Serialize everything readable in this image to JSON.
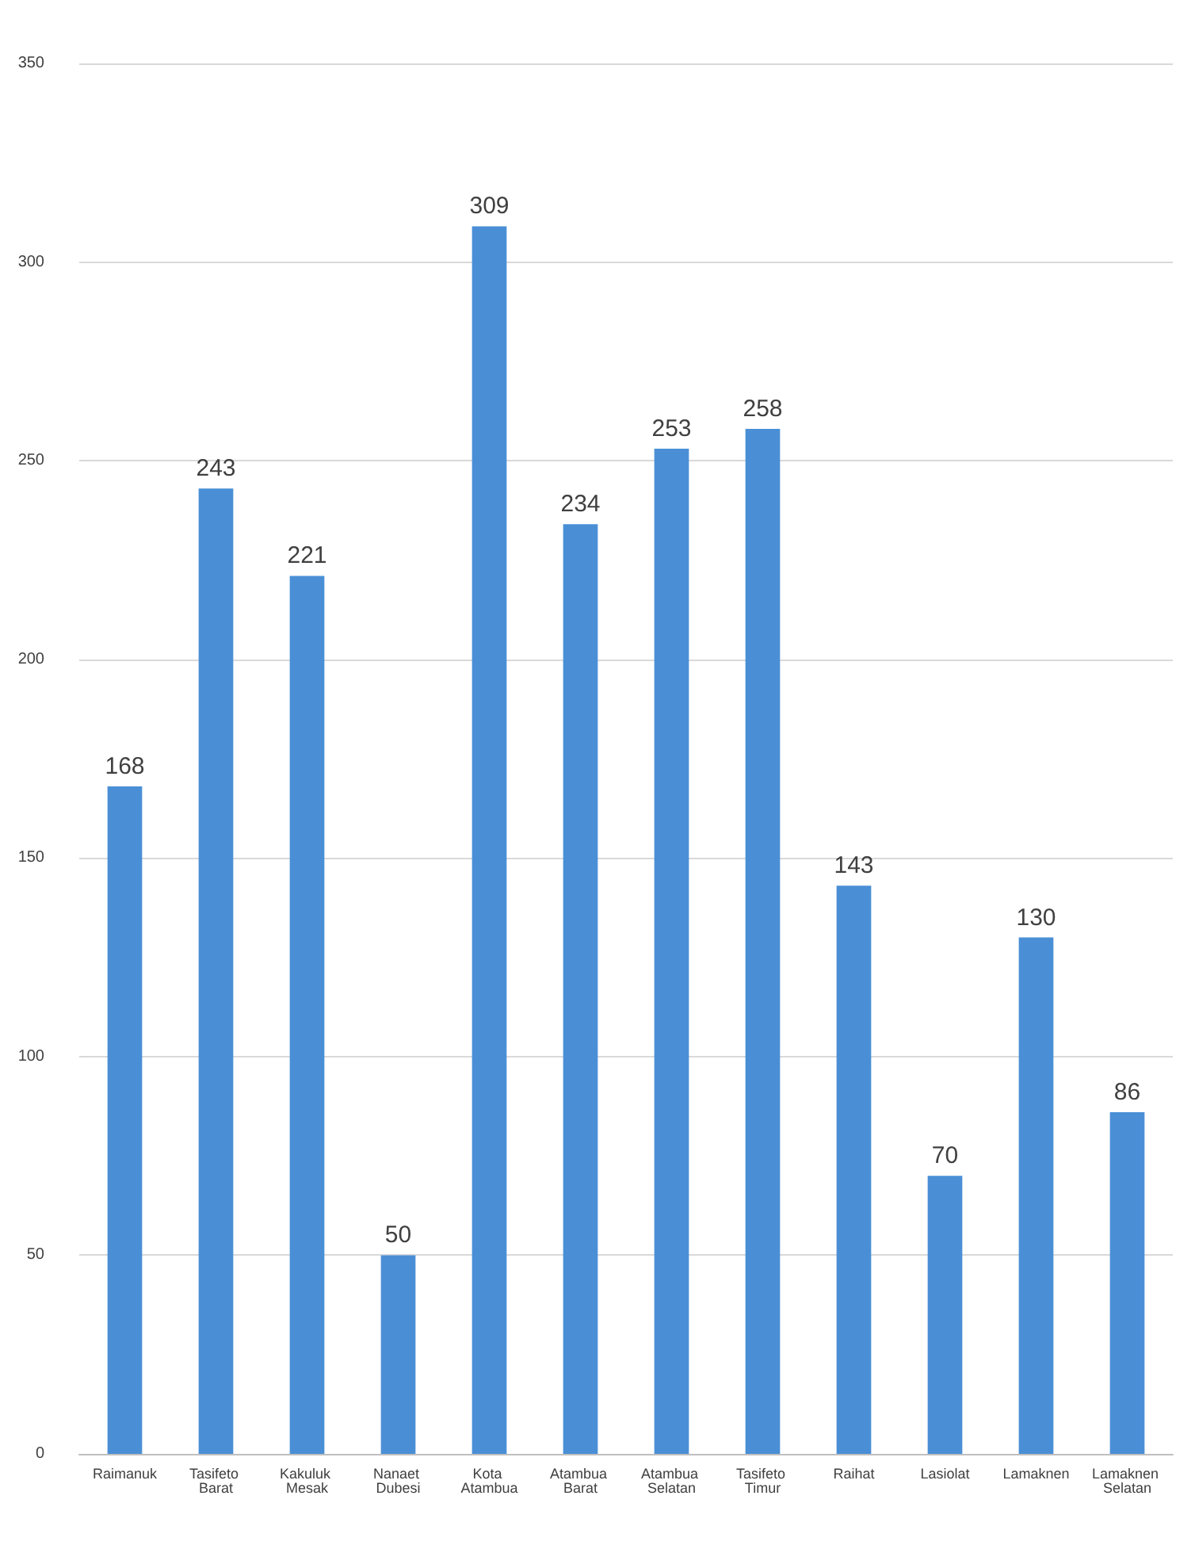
{
  "chart_data": {
    "type": "bar",
    "categories": [
      "Raimanuk",
      "Tasifeto Barat",
      "Kakuluk Mesak",
      "Nanaet Dubesi",
      "Kota Atambua",
      "Atambua Barat",
      "Atambua Selatan",
      "Tasifeto Timur",
      "Raihat",
      "Lasiolat",
      "Lamaknen",
      "Lamaknen Selatan"
    ],
    "values": [
      168,
      243,
      221,
      50,
      309,
      234,
      253,
      258,
      143,
      70,
      130,
      86
    ],
    "color": "#4a8fd6",
    "ylim": [
      0,
      350
    ],
    "yticks": [
      0,
      50,
      100,
      150,
      200,
      250,
      300,
      350
    ],
    "grid": "y",
    "data_labels": true
  }
}
